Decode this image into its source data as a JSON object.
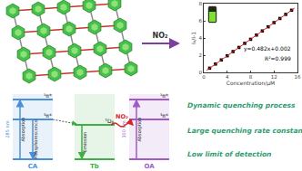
{
  "chart_data": {
    "type": "scatter",
    "xlabel": "Concentration/μM",
    "ylabel": "I₀/I-1",
    "xlim": [
      0,
      16
    ],
    "xticks": [
      0,
      4,
      8,
      12,
      16
    ],
    "ylim": [
      0,
      8
    ],
    "yticks": [
      0,
      2,
      4,
      6,
      8
    ],
    "grid": false,
    "series": [
      {
        "type": "scatter",
        "color": "#000000",
        "marker": "square",
        "x": [
          1,
          2,
          3,
          4,
          5,
          6,
          7,
          8,
          9,
          10,
          11,
          12,
          13,
          14,
          15
        ],
        "values": [
          0.49,
          0.97,
          1.45,
          1.93,
          2.42,
          2.9,
          3.38,
          3.85,
          4.34,
          4.82,
          5.3,
          5.79,
          6.27,
          6.75,
          7.23
        ]
      },
      {
        "type": "line",
        "color": "#e02020",
        "line_style": "solid",
        "x": [
          0.5,
          15.5
        ],
        "values": [
          0.24,
          7.47
        ]
      }
    ],
    "annotations": [
      "y=0.482x+0.002",
      "R²=0.999"
    ]
  },
  "structure": {
    "arrow_label": "NO₂"
  },
  "energy_diagram": {
    "columns": [
      {
        "label": "CA",
        "color": "#4a90d9",
        "levels": [
          "¹π*",
          "³π*"
        ],
        "transitions": [
          "Absorption",
          "Phosphorescence"
        ],
        "wavelength": "285 nm"
      },
      {
        "label": "Tb",
        "color": "#3cb043",
        "levels": [
          "⁵D₄"
        ],
        "transitions": [
          "Emission"
        ]
      },
      {
        "label": "OA",
        "color": "#a05bc8",
        "levels": [
          "¹π*",
          "³π*"
        ],
        "transitions": [
          "Absorption"
        ],
        "wavelength": "300 nm"
      }
    ],
    "quencher": "NO₂"
  },
  "highlights": [
    {
      "text": "Dynamic quenching process",
      "color": "#2f9e6f"
    },
    {
      "text": "Large quenching rate constant",
      "color": "#2f9e6f"
    },
    {
      "text": "Low limit of detection",
      "color": "#2f9e6f"
    }
  ]
}
